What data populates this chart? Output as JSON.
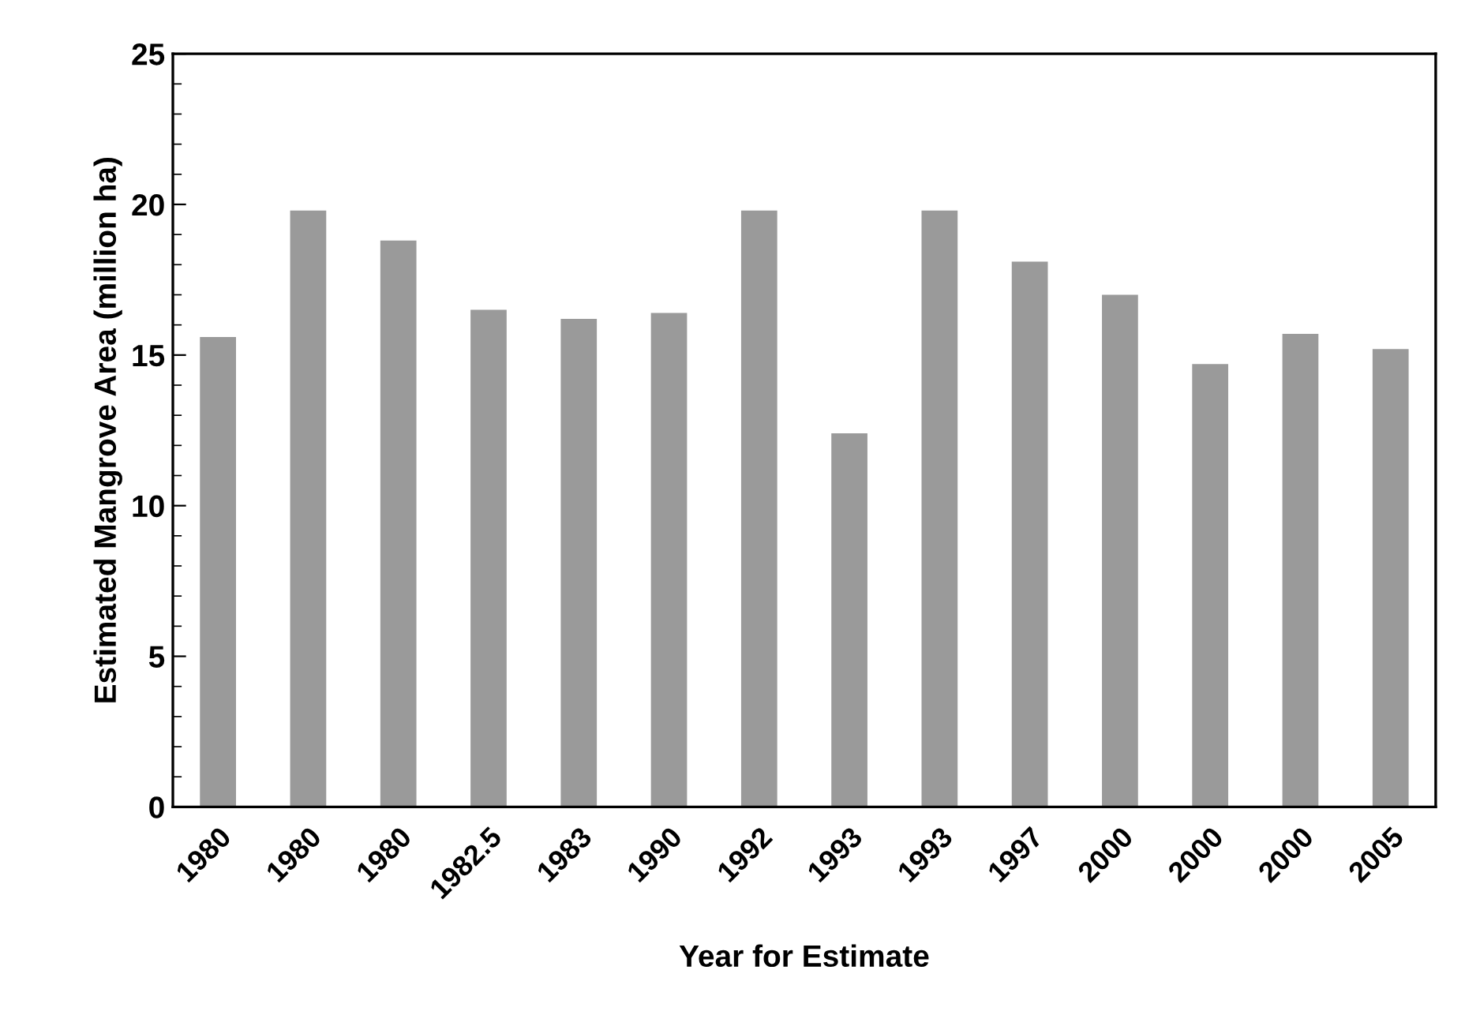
{
  "chart_data": {
    "type": "bar",
    "xlabel": "Year for Estimate",
    "ylabel": "Estimated Mangrove Area (million ha)",
    "categories": [
      "1980",
      "1980",
      "1980",
      "1982.5",
      "1983",
      "1990",
      "1992",
      "1993",
      "1993",
      "1997",
      "2000",
      "2000",
      "2000",
      "2005"
    ],
    "values": [
      15.6,
      19.8,
      18.8,
      16.5,
      16.2,
      16.4,
      19.8,
      12.4,
      19.8,
      18.1,
      17.0,
      14.7,
      15.7,
      15.2
    ],
    "color": "#9a9a9a",
    "ylim": [
      0,
      25
    ],
    "yticks": [
      0,
      5,
      10,
      15,
      20,
      25
    ],
    "grid": false
  }
}
